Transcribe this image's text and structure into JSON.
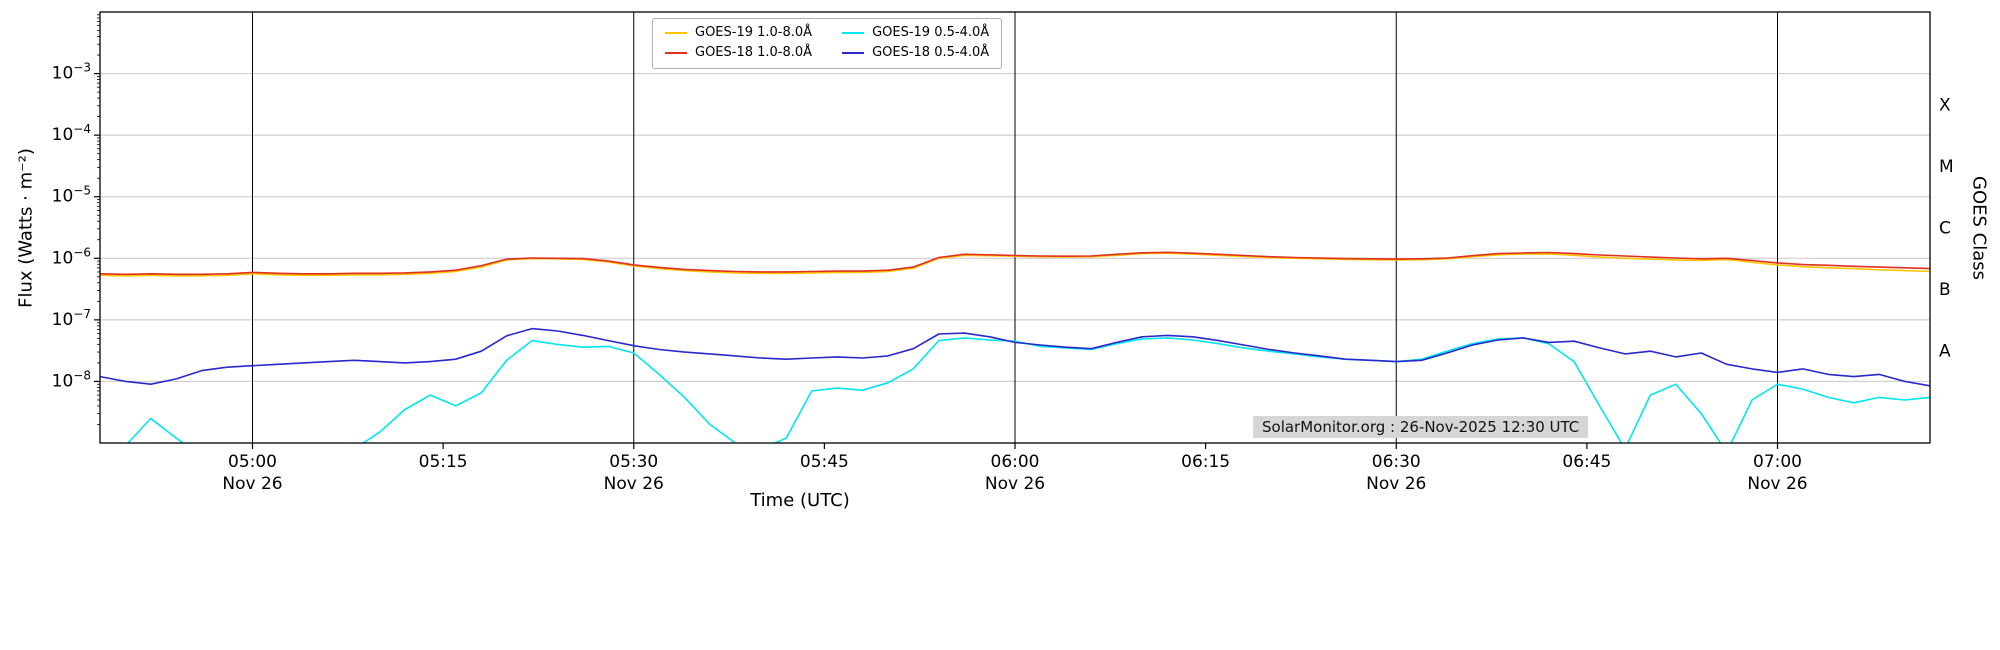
{
  "chart_data": {
    "type": "line",
    "title": "",
    "xlabel": "Time (UTC)",
    "ylabel": "Flux (Watts · m⁻²)",
    "ylabel_right": "GOES Class",
    "watermark": "SolarMonitor.org : 26-Nov-2025 12:30 UTC",
    "grid": "on",
    "legend_position": "upper-center-inside",
    "colors": {
      "grid": "#c8c8c8",
      "axis": "#000000",
      "background": "#ffffff"
    },
    "x_axis": {
      "start_min": 288,
      "step_min": 2,
      "end_min": 432,
      "ticks": [
        {
          "min": 300,
          "label": "05:00",
          "date": "Nov 26"
        },
        {
          "min": 315,
          "label": "05:15"
        },
        {
          "min": 330,
          "label": "05:30",
          "date": "Nov 26"
        },
        {
          "min": 345,
          "label": "05:45"
        },
        {
          "min": 360,
          "label": "06:00",
          "date": "Nov 26"
        },
        {
          "min": 375,
          "label": "06:15"
        },
        {
          "min": 390,
          "label": "06:30",
          "date": "Nov 26"
        },
        {
          "min": 405,
          "label": "06:45"
        },
        {
          "min": 420,
          "label": "07:00",
          "date": "Nov 26"
        }
      ]
    },
    "y_axis": {
      "log_min": -9,
      "log_max": -2,
      "ticks": [
        -3,
        -4,
        -5,
        -6,
        -7,
        -8
      ]
    },
    "goes_classes": [
      {
        "label": "X",
        "log_center": -3.5
      },
      {
        "label": "M",
        "log_center": -4.5
      },
      {
        "label": "C",
        "log_center": -5.5
      },
      {
        "label": "B",
        "log_center": -6.5
      },
      {
        "label": "A",
        "log_center": -7.5
      }
    ],
    "series": [
      {
        "id": "goes19-long",
        "name": "GOES-19 1.0-8.0Å",
        "color": "#ffc400",
        "values": [
          5.3e-07,
          5.2e-07,
          5.3e-07,
          5.2e-07,
          5.2e-07,
          5.3e-07,
          5.6e-07,
          5.4e-07,
          5.3e-07,
          5.3e-07,
          5.4e-07,
          5.4e-07,
          5.5e-07,
          5.7e-07,
          6.1e-07,
          7.2e-07,
          9.4e-07,
          9.9e-07,
          9.8e-07,
          9.6e-07,
          8.7e-07,
          7.5e-07,
          6.8e-07,
          6.3e-07,
          6e-07,
          5.8e-07,
          5.7e-07,
          5.7e-07,
          5.8e-07,
          5.9e-07,
          5.9e-07,
          6.1e-07,
          6.9e-07,
          1e-06,
          1.12e-06,
          1.1e-06,
          1.08e-06,
          1.06e-06,
          1.05e-06,
          1.06e-06,
          1.12e-06,
          1.19e-06,
          1.21e-06,
          1.17e-06,
          1.12e-06,
          1.07e-06,
          1.03e-06,
          1e-06,
          9.8e-07,
          9.6e-07,
          9.5e-07,
          9.4e-07,
          9.5e-07,
          9.8e-07,
          1.06e-06,
          1.14e-06,
          1.17e-06,
          1.18e-06,
          1.12e-06,
          1.05e-06,
          1e-06,
          9.7e-07,
          9.4e-07,
          9.2e-07,
          9.6e-07,
          8.6e-07,
          7.8e-07,
          7.3e-07,
          7e-07,
          6.8e-07,
          6.5e-07,
          6.3e-07,
          6.1e-07
        ]
      },
      {
        "id": "goes18-long",
        "name": "GOES-18 1.0-8.0Å",
        "color": "#e0301e",
        "values": [
          5.6e-07,
          5.5e-07,
          5.6e-07,
          5.5e-07,
          5.5e-07,
          5.6e-07,
          5.9e-07,
          5.7e-07,
          5.6e-07,
          5.6e-07,
          5.7e-07,
          5.7e-07,
          5.8e-07,
          6e-07,
          6.4e-07,
          7.6e-07,
          9.7e-07,
          1.01e-06,
          1e-06,
          9.9e-07,
          9e-07,
          7.8e-07,
          7.1e-07,
          6.6e-07,
          6.3e-07,
          6.1e-07,
          6e-07,
          6e-07,
          6.1e-07,
          6.2e-07,
          6.2e-07,
          6.4e-07,
          7.2e-07,
          1.03e-06,
          1.16e-06,
          1.14e-06,
          1.11e-06,
          1.09e-06,
          1.08e-06,
          1.09e-06,
          1.16e-06,
          1.23e-06,
          1.25e-06,
          1.21e-06,
          1.16e-06,
          1.11e-06,
          1.06e-06,
          1.03e-06,
          1.01e-06,
          9.9e-07,
          9.8e-07,
          9.7e-07,
          9.8e-07,
          1.01e-06,
          1.1e-06,
          1.19e-06,
          1.22e-06,
          1.24e-06,
          1.19e-06,
          1.13e-06,
          1.09e-06,
          1.05e-06,
          1.01e-06,
          9.8e-07,
          1e-06,
          9.2e-07,
          8.4e-07,
          7.9e-07,
          7.7e-07,
          7.4e-07,
          7.2e-07,
          7e-07,
          6.8e-07
        ]
      },
      {
        "id": "goes19-short",
        "name": "GOES-19 0.5-4.0Å",
        "color": "#00e5ee",
        "values": [
          6e-10,
          9e-10,
          2.5e-09,
          1.2e-09,
          6e-10,
          5e-10,
          5e-10,
          6e-10,
          5e-10,
          6e-10,
          8e-10,
          1.5e-09,
          3.5e-09,
          6e-09,
          4e-09,
          6.5e-09,
          2.2e-08,
          4.6e-08,
          4e-08,
          3.6e-08,
          3.7e-08,
          2.9e-08,
          1.3e-08,
          5.5e-09,
          2e-09,
          1e-09,
          8e-10,
          1.2e-09,
          7e-09,
          7.8e-09,
          7.2e-09,
          9.5e-09,
          1.6e-08,
          4.6e-08,
          5.1e-08,
          4.7e-08,
          4.5e-08,
          3.7e-08,
          3.5e-08,
          3.3e-08,
          4.1e-08,
          4.9e-08,
          5.1e-08,
          4.7e-08,
          4.1e-08,
          3.5e-08,
          3.1e-08,
          2.8e-08,
          2.5e-08,
          2.3e-08,
          2.2e-08,
          2.1e-08,
          2.3e-08,
          3.1e-08,
          4.1e-08,
          4.9e-08,
          5.1e-08,
          4.1e-08,
          2.1e-08,
          4e-09,
          8e-10,
          6e-09,
          9e-09,
          3e-09,
          7e-10,
          5e-09,
          9e-09,
          7.5e-09,
          5.5e-09,
          4.5e-09,
          5.5e-09,
          5e-09,
          5.5e-09
        ]
      },
      {
        "id": "goes18-short",
        "name": "GOES-18 0.5-4.0Å",
        "color": "#2828cc",
        "values": [
          1.2e-08,
          1e-08,
          9e-09,
          1.1e-08,
          1.5e-08,
          1.7e-08,
          1.8e-08,
          1.9e-08,
          2e-08,
          2.1e-08,
          2.2e-08,
          2.1e-08,
          2e-08,
          2.1e-08,
          2.3e-08,
          3.1e-08,
          5.5e-08,
          7.2e-08,
          6.6e-08,
          5.6e-08,
          4.6e-08,
          3.8e-08,
          3.3e-08,
          3e-08,
          2.8e-08,
          2.6e-08,
          2.4e-08,
          2.3e-08,
          2.4e-08,
          2.5e-08,
          2.4e-08,
          2.6e-08,
          3.4e-08,
          5.9e-08,
          6.1e-08,
          5.3e-08,
          4.3e-08,
          3.9e-08,
          3.6e-08,
          3.4e-08,
          4.3e-08,
          5.3e-08,
          5.6e-08,
          5.3e-08,
          4.6e-08,
          3.9e-08,
          3.3e-08,
          2.9e-08,
          2.6e-08,
          2.3e-08,
          2.2e-08,
          2.1e-08,
          2.2e-08,
          2.9e-08,
          3.9e-08,
          4.7e-08,
          5.1e-08,
          4.3e-08,
          4.5e-08,
          3.5e-08,
          2.8e-08,
          3.1e-08,
          2.5e-08,
          2.9e-08,
          1.9e-08,
          1.6e-08,
          1.4e-08,
          1.6e-08,
          1.3e-08,
          1.2e-08,
          1.3e-08,
          1e-08,
          8.5e-09
        ]
      }
    ]
  }
}
